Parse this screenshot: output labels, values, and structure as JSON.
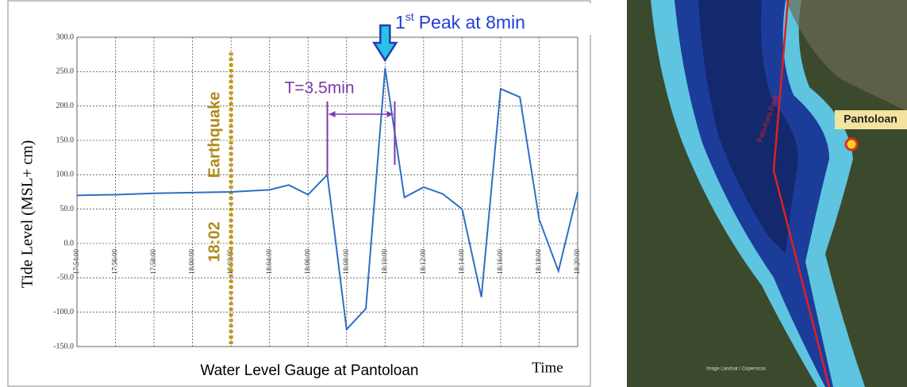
{
  "chart_data": {
    "type": "line",
    "caption": "Water Level Gauge at Pantoloan",
    "x_label": "Time",
    "y_label": "Tide Level (MSL+ cm)",
    "x": [
      1074,
      1076,
      1078,
      1080,
      1082,
      1084,
      1085,
      1086,
      1087,
      1088,
      1089,
      1090,
      1091,
      1092,
      1093,
      1094,
      1095,
      1096,
      1097,
      1098,
      1099,
      1100
    ],
    "series": [
      {
        "color": "#2f6fc4",
        "values": [
          70,
          71,
          73,
          74,
          75,
          78,
          85,
          71,
          100,
          -125,
          -95,
          255,
          67,
          82,
          72,
          50,
          -78,
          225,
          213,
          35,
          -40,
          75
        ]
      }
    ],
    "xlim": [
      1074,
      1100
    ],
    "xticks": [
      {
        "value": 1074,
        "label": "17:54:00"
      },
      {
        "value": 1076,
        "label": "17:56:00"
      },
      {
        "value": 1078,
        "label": "17:58:00"
      },
      {
        "value": 1080,
        "label": "18:00:00"
      },
      {
        "value": 1082,
        "label": "18:02:00"
      },
      {
        "value": 1084,
        "label": "18:04:00"
      },
      {
        "value": 1086,
        "label": "18:06:00"
      },
      {
        "value": 1088,
        "label": "18:08:00"
      },
      {
        "value": 1090,
        "label": "18:10:00"
      },
      {
        "value": 1092,
        "label": "18:12:00"
      },
      {
        "value": 1094,
        "label": "18:14:00"
      },
      {
        "value": 1096,
        "label": "18:16:00"
      },
      {
        "value": 1098,
        "label": "18:18:00"
      },
      {
        "value": 1100,
        "label": "18:20:00"
      }
    ],
    "ylim": [
      -150,
      300
    ],
    "yticks": [
      {
        "value": -150,
        "label": "-150.0"
      },
      {
        "value": -100,
        "label": "-100.0"
      },
      {
        "value": -50,
        "label": "-50.0"
      },
      {
        "value": 0,
        "label": "0.0"
      },
      {
        "value": 50,
        "label": "50.0"
      },
      {
        "value": 100,
        "label": "100.0"
      },
      {
        "value": 150,
        "label": "150.0"
      },
      {
        "value": 200,
        "label": "200.0"
      },
      {
        "value": 250,
        "label": "250.0"
      },
      {
        "value": 300,
        "label": "300.0"
      }
    ],
    "grid": true,
    "earthquake": {
      "x": 1082,
      "label": "Earthquake",
      "time": "18:02"
    },
    "period": {
      "x": [
        1087,
        1090.5
      ],
      "label": "T=3.5min"
    },
    "peak": {
      "x": 1090,
      "number": "1",
      "suffix": "st",
      "text": "Peak at 8min"
    }
  },
  "map": {
    "place": "Pantoloan",
    "fault": "Palu-Koro Fault",
    "credit": "Image Landsat / Copernicus"
  }
}
